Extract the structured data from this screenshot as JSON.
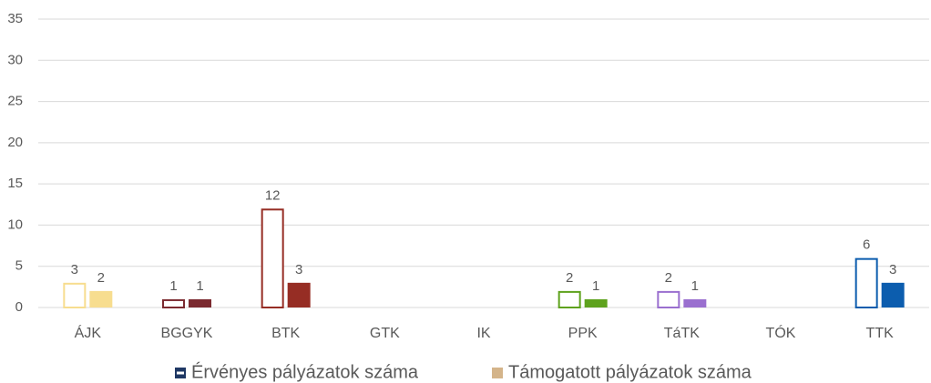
{
  "chart_data": {
    "type": "bar",
    "categories": [
      "ÁJK",
      "BGGYK",
      "BTK",
      "GTK",
      "IK",
      "PPK",
      "TáTK",
      "TÓK",
      "TTK"
    ],
    "category_colors": [
      "#f7dd8f",
      "#7b2a30",
      "#962d24",
      "#a0a0a0",
      "#a0a0a0",
      "#5ea21d",
      "#9a6fcf",
      "#a0a0a0",
      "#0c5dae"
    ],
    "series": [
      {
        "name": "Érvényes pályázatok száma",
        "color": "#1f3864",
        "style": "outline",
        "values": [
          3,
          1,
          12,
          null,
          null,
          2,
          2,
          null,
          6
        ]
      },
      {
        "name": "Támogatott pályázatok száma",
        "color": "#d4b48a",
        "style": "filled",
        "values": [
          2,
          1,
          3,
          null,
          null,
          1,
          1,
          null,
          3
        ]
      }
    ],
    "ylim": [
      0,
      35
    ],
    "yticks": [
      0,
      5,
      10,
      15,
      20,
      25,
      30,
      35
    ],
    "grid": true,
    "legend": "bottom"
  }
}
